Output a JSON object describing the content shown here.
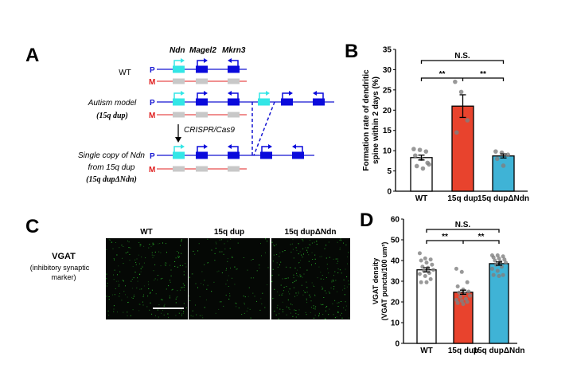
{
  "panel_labels": {
    "a": "A",
    "b": "B",
    "c": "C",
    "d": "D"
  },
  "panel_a": {
    "genes": [
      "Ndn",
      "Magel2",
      "Mkrn3"
    ],
    "paternal_label": "P",
    "maternal_label": "M",
    "rows": [
      {
        "label": "WT"
      },
      {
        "label": "Autism model",
        "sublabel": "(15q dup)"
      },
      {
        "label": "Single copy of Ndn",
        "label2": "from 15q dup",
        "sublabel": "(15q dupΔNdn)"
      }
    ],
    "method": "CRISPR/Cas9",
    "colors": {
      "paternal": "#1414d2",
      "maternal": "#e02020",
      "ndn": "#33e6e6",
      "gene": "#0a0adc",
      "silent": "#c8c8c8"
    }
  },
  "panel_c": {
    "columns": [
      "WT",
      "15q dup",
      "15q dupΔNdn"
    ],
    "row_label": "VGAT",
    "row_sublabel_1": "(inhibitory synaptic",
    "row_sublabel_2": "marker)",
    "puncta_color": "#2fd02f"
  },
  "chart_data": [
    {
      "type": "bar",
      "panel": "B",
      "categories": [
        "WT",
        "15q dup",
        "15q dupΔNdn"
      ],
      "values": [
        8.3,
        21.0,
        8.7
      ],
      "errors": [
        0.6,
        2.8,
        0.5
      ],
      "points": [
        [
          10.4,
          10.2,
          9.8,
          8.8,
          8.0,
          7.0,
          6.2,
          5.6,
          6.6
        ],
        [
          27.0,
          24.5,
          17.5,
          14.5
        ],
        [
          9.8,
          9.5,
          9.0,
          8.0,
          6.3
        ]
      ],
      "colors": [
        "#ffffff",
        "#e8432d",
        "#3fb3d6"
      ],
      "ylabel_1": "Formation rate of dendritic",
      "ylabel_2": "spine within 2 days (%)",
      "ylim": [
        0,
        35
      ],
      "yticks": [
        "0",
        "5",
        "10",
        "15",
        "20",
        "25",
        "30",
        "35"
      ],
      "significance": [
        {
          "from": "WT",
          "to": "15q dupΔNdn",
          "label": "N.S."
        },
        {
          "from": "WT",
          "to": "15q dup",
          "label": "**"
        },
        {
          "from": "15q dup",
          "to": "15q dupΔNdn",
          "label": "**"
        }
      ]
    },
    {
      "type": "bar",
      "panel": "D",
      "categories": [
        "WT",
        "15q dup",
        "15q dupΔNdn"
      ],
      "values": [
        35.5,
        24.7,
        38.5
      ],
      "errors": [
        1.0,
        1.0,
        0.8
      ],
      "points": [
        [
          43.5,
          41,
          40.5,
          40,
          39,
          38,
          37,
          36.5,
          35.5,
          35,
          34,
          33.5,
          32.5,
          31,
          29.5,
          29.5
        ],
        [
          36,
          34.5,
          29.5,
          27.5,
          26,
          25,
          24.5,
          24,
          23,
          22.5,
          21.5,
          21,
          20.5,
          20,
          19.5,
          19
        ],
        [
          42.5,
          42.5,
          42,
          41.5,
          41,
          40.5,
          40,
          39.5,
          39,
          38,
          37,
          36,
          35,
          33,
          33,
          32.5
        ]
      ],
      "colors": [
        "#ffffff",
        "#e8432d",
        "#3fb3d6"
      ],
      "ylabel_1": "VGAT density",
      "ylabel_2": "(VGAT puncta/100 um²)",
      "ylim": [
        0,
        60
      ],
      "yticks": [
        "0",
        "10",
        "20",
        "30",
        "40",
        "50",
        "60"
      ],
      "significance": [
        {
          "from": "WT",
          "to": "15q dupΔNdn",
          "label": "N.S."
        },
        {
          "from": "WT",
          "to": "15q dup",
          "label": "**"
        },
        {
          "from": "15q dup",
          "to": "15q dupΔNdn",
          "label": "**"
        }
      ]
    }
  ]
}
